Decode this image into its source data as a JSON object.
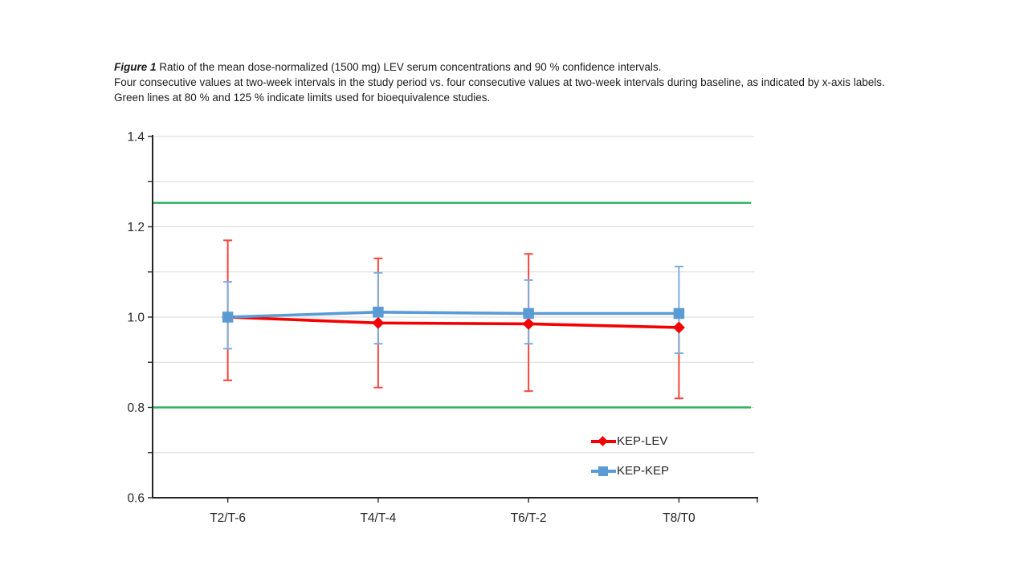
{
  "caption": {
    "figure_label": "Figure 1",
    "line1_rest": " Ratio of the mean dose-normalized (1500 mg) LEV serum concentrations and 90 % confidence intervals.",
    "line2": "Four consecutive values at two-week intervals in the study period vs. four consecutive values at two-week intervals during baseline, as indicated by x-axis labels.",
    "line3": " Green lines at 80 % and 125 % indicate limits used for bioequivalence studies."
  },
  "chart_data": {
    "type": "line",
    "categories": [
      "T2/T-6",
      "T4/T-4",
      "T6/T-2",
      "T8/T0"
    ],
    "ylim": [
      0.6,
      1.4
    ],
    "y_tick_labels": [
      "0.6",
      "0.8",
      "1.0",
      "1.2",
      "1.4"
    ],
    "grid": true,
    "grid_step": 0.1,
    "grid_color": "#D9D9D9",
    "axis_color": "#262626",
    "legend_position": "inside-bottom-right",
    "reference_lines": [
      {
        "value": 0.8,
        "label": "80 % bioequivalence limit",
        "color": "#2DB05C"
      },
      {
        "value": 1.253,
        "label": "125 % bioequivalence limit",
        "color": "#2DB05C"
      }
    ],
    "series": [
      {
        "name": "KEP-LEV",
        "marker": "diamond",
        "color": "#F40000",
        "error_color": "#F5443C",
        "values": [
          1.0,
          0.987,
          0.985,
          0.977
        ],
        "ci_lower": [
          0.86,
          0.844,
          0.836,
          0.82
        ],
        "ci_upper": [
          1.17,
          1.13,
          1.14,
          null
        ]
      },
      {
        "name": "KEP-KEP",
        "marker": "square",
        "color": "#5B9BD5",
        "error_color": "#7EACDC",
        "values": [
          1.0,
          1.011,
          1.008,
          1.008
        ],
        "ci_lower": [
          0.93,
          0.941,
          0.941,
          0.92
        ],
        "ci_upper": [
          1.078,
          1.098,
          1.082,
          1.112
        ]
      }
    ]
  }
}
